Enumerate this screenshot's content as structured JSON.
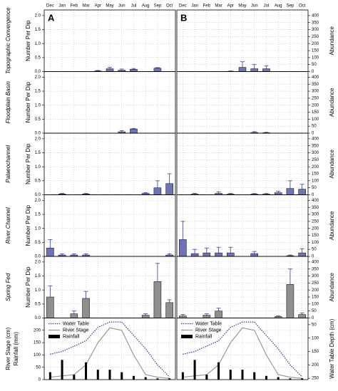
{
  "months": [
    "Dec",
    "Jan",
    "Feb",
    "Mar",
    "Apr",
    "May",
    "Jun",
    "Jul",
    "Aug",
    "Sep",
    "Oct"
  ],
  "columns": [
    {
      "letter": "A",
      "y_label": "Number Per Dip",
      "ylim": [
        0,
        2.2
      ],
      "yticks": [
        {
          "value": 0,
          "label": "0.0"
        },
        {
          "value": 0.5,
          "label": "0.5"
        },
        {
          "value": 1,
          "label": "1.0"
        },
        {
          "value": 1.5,
          "label": "1.5"
        },
        {
          "value": 2,
          "label": "2.0"
        }
      ]
    },
    {
      "letter": "B",
      "y_label": "Abundance",
      "ylim": [
        0,
        440
      ],
      "yticks": [
        0,
        50,
        100,
        150,
        200,
        250,
        300,
        350,
        400
      ]
    }
  ],
  "rows": [
    {
      "label": "Topographic Convergence",
      "color": "#6e73b8",
      "values": [
        [
          null,
          null,
          null,
          null,
          0.02,
          0.1,
          0.05,
          0.08,
          null,
          0.12,
          null
        ],
        [
          null,
          null,
          null,
          null,
          2,
          30,
          20,
          20,
          null,
          null,
          null
        ]
      ],
      "errors": [
        [
          null,
          null,
          null,
          null,
          0.02,
          0.05,
          0.04,
          0.03,
          null,
          0.02,
          null
        ],
        [
          null,
          null,
          null,
          null,
          2,
          40,
          30,
          20,
          null,
          null,
          null
        ]
      ]
    },
    {
      "label": "Floodplain Basin",
      "color": "#6e73b8",
      "values": [
        [
          null,
          null,
          null,
          null,
          null,
          null,
          0.05,
          0.15,
          null,
          null,
          null
        ],
        [
          null,
          null,
          null,
          null,
          null,
          null,
          5,
          3,
          null,
          null,
          null
        ]
      ],
      "errors": [
        [
          null,
          null,
          null,
          null,
          null,
          null,
          0.04,
          0.02,
          null,
          null,
          null
        ],
        [
          null,
          null,
          null,
          null,
          null,
          null,
          6,
          3,
          null,
          null,
          null
        ]
      ]
    },
    {
      "label": "Palaeochannel",
      "color": "#6e73b8",
      "values": [
        [
          null,
          0.03,
          null,
          0.03,
          null,
          null,
          null,
          null,
          0.05,
          0.25,
          0.4
        ],
        [
          null,
          5,
          null,
          10,
          5,
          null,
          5,
          5,
          15,
          45,
          40
        ]
      ],
      "errors": [
        [
          null,
          0.02,
          null,
          0.02,
          null,
          null,
          null,
          null,
          0.03,
          0.25,
          0.35
        ],
        [
          null,
          5,
          null,
          10,
          5,
          null,
          4,
          4,
          10,
          55,
          35
        ]
      ]
    },
    {
      "label": "River Channel",
      "color": "#6e73b8",
      "values": [
        [
          0.3,
          0.05,
          0.05,
          0.05,
          null,
          null,
          null,
          null,
          null,
          null,
          0.05
        ],
        [
          120,
          20,
          25,
          25,
          25,
          null,
          20,
          null,
          null,
          5,
          25
        ]
      ],
      "errors": [
        [
          0.3,
          0.04,
          0.04,
          0.04,
          null,
          null,
          null,
          null,
          null,
          null,
          0.04
        ],
        [
          130,
          30,
          35,
          40,
          40,
          null,
          15,
          null,
          null,
          5,
          30
        ]
      ]
    },
    {
      "label": "Spring Fed",
      "color": "#8f8f8f",
      "values": [
        [
          0.75,
          null,
          0.15,
          0.7,
          null,
          null,
          null,
          null,
          0.1,
          1.3,
          0.55
        ],
        [
          15,
          null,
          20,
          50,
          null,
          null,
          null,
          null,
          10,
          240,
          25
        ]
      ],
      "errors": [
        [
          0.4,
          null,
          0.1,
          0.25,
          null,
          null,
          null,
          null,
          0.05,
          0.65,
          0.1
        ],
        [
          10,
          null,
          10,
          20,
          null,
          null,
          null,
          null,
          5,
          110,
          10
        ]
      ]
    }
  ],
  "hydrology": {
    "ylabel": [
      "River Stage (cm)",
      "Rainfall (mm)"
    ],
    "y2label": "Water Table Depth (cm)",
    "ylim": [
      0,
      250
    ],
    "yticks": [
      0,
      50,
      100,
      150,
      200
    ],
    "y2lim": [
      255,
      25
    ],
    "y2ticks": [
      50,
      100,
      150,
      200,
      250
    ],
    "series": [
      {
        "name": "Water Table",
        "color": "#2b3a8f",
        "axis": "y2",
        "type": "line",
        "dash": true,
        "values": [
          160,
          150,
          130,
          110,
          60,
          40,
          40,
          90,
          140,
          200,
          245
        ]
      },
      {
        "name": "River Stage",
        "color": "#999999",
        "type": "line",
        "values": [
          10,
          15,
          20,
          60,
          150,
          210,
          200,
          100,
          20,
          10,
          5
        ]
      },
      {
        "name": "Rainfall",
        "color": "#000000",
        "type": "bar",
        "values": [
          30,
          80,
          20,
          70,
          40,
          40,
          30,
          15,
          10,
          5,
          5
        ]
      }
    ]
  }
}
